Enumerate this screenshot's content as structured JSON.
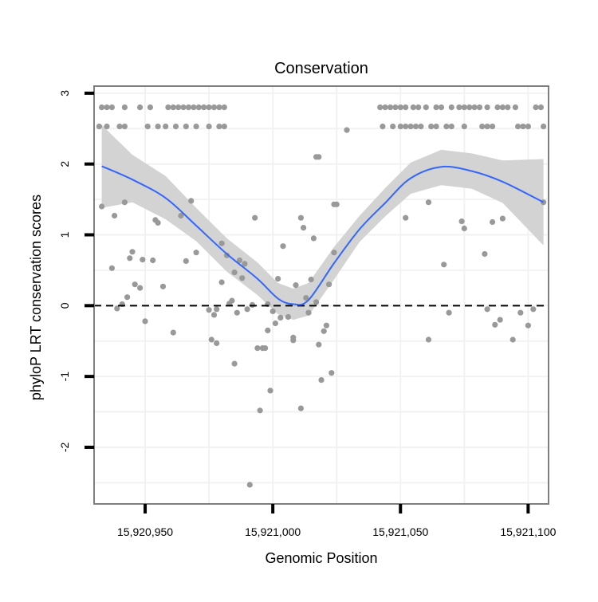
{
  "chart_data": {
    "type": "scatter",
    "title": "Conservation",
    "xlabel": "Genomic Position",
    "ylabel": "phyloP LRT conservation scores",
    "xlim": [
      15920930,
      15921108
    ],
    "ylim": [
      -2.8,
      3.1
    ],
    "x_ticks": [
      15920950,
      15921000,
      15921050,
      15921100
    ],
    "x_tick_labels": [
      "15,920,950",
      "15,921,000",
      "15,921,050",
      "15,921,100"
    ],
    "y_ticks": [
      -2,
      -1,
      0,
      1,
      2,
      3
    ],
    "y_tick_labels": [
      "-2",
      "-1",
      "0",
      "1",
      "2",
      "3"
    ],
    "grid": true,
    "reference_line": {
      "y": 0,
      "style": "dashed",
      "color": "#000000"
    },
    "colors": {
      "points": "#999999",
      "smooth": "#3366ff",
      "ribbon": "#d3d3d3",
      "grid": "#f2f2f2",
      "border": "#7f7f7f"
    },
    "series": [
      {
        "kind": "points",
        "points": [
          [
            15920933,
            2.8
          ],
          [
            15920935,
            2.8
          ],
          [
            15920937,
            2.8
          ],
          [
            15920942,
            2.8
          ],
          [
            15920948,
            2.8
          ],
          [
            15920952,
            2.8
          ],
          [
            15920959,
            2.8
          ],
          [
            15920961,
            2.8
          ],
          [
            15920963,
            2.8
          ],
          [
            15920965,
            2.8
          ],
          [
            15920967,
            2.8
          ],
          [
            15920969,
            2.8
          ],
          [
            15920971,
            2.8
          ],
          [
            15920973,
            2.8
          ],
          [
            15920975,
            2.8
          ],
          [
            15920977,
            2.8
          ],
          [
            15920979,
            2.8
          ],
          [
            15920981,
            2.8
          ],
          [
            15921042,
            2.8
          ],
          [
            15921044,
            2.8
          ],
          [
            15921046,
            2.8
          ],
          [
            15921048,
            2.8
          ],
          [
            15921050,
            2.8
          ],
          [
            15921052,
            2.8
          ],
          [
            15921055,
            2.8
          ],
          [
            15921057,
            2.8
          ],
          [
            15921060,
            2.8
          ],
          [
            15921064,
            2.8
          ],
          [
            15921066,
            2.8
          ],
          [
            15921070,
            2.8
          ],
          [
            15921073,
            2.8
          ],
          [
            15921075,
            2.8
          ],
          [
            15921077,
            2.8
          ],
          [
            15921079,
            2.8
          ],
          [
            15921081,
            2.8
          ],
          [
            15921084,
            2.8
          ],
          [
            15921088,
            2.8
          ],
          [
            15921090,
            2.8
          ],
          [
            15921092,
            2.8
          ],
          [
            15921095,
            2.8
          ],
          [
            15921103,
            2.8
          ],
          [
            15921105,
            2.8
          ],
          [
            15920932,
            2.53
          ],
          [
            15920935,
            2.53
          ],
          [
            15920940,
            2.53
          ],
          [
            15920942,
            2.53
          ],
          [
            15920951,
            2.53
          ],
          [
            15920955,
            2.53
          ],
          [
            15920958,
            2.53
          ],
          [
            15920962,
            2.53
          ],
          [
            15920966,
            2.53
          ],
          [
            15920970,
            2.53
          ],
          [
            15920975,
            2.53
          ],
          [
            15920979,
            2.53
          ],
          [
            15920981,
            2.53
          ],
          [
            15921043,
            2.53
          ],
          [
            15921047,
            2.53
          ],
          [
            15921050,
            2.53
          ],
          [
            15921052,
            2.53
          ],
          [
            15921054,
            2.53
          ],
          [
            15921056,
            2.53
          ],
          [
            15921058,
            2.53
          ],
          [
            15921062,
            2.53
          ],
          [
            15921064,
            2.53
          ],
          [
            15921068,
            2.53
          ],
          [
            15921070,
            2.53
          ],
          [
            15921075,
            2.53
          ],
          [
            15921082,
            2.53
          ],
          [
            15921084,
            2.53
          ],
          [
            15921086,
            2.53
          ],
          [
            15921096,
            2.53
          ],
          [
            15921098,
            2.53
          ],
          [
            15921100,
            2.53
          ],
          [
            15921106,
            2.53
          ],
          [
            15921029,
            2.48
          ],
          [
            15921017,
            2.1
          ],
          [
            15921018,
            2.1
          ],
          [
            15921024,
            1.43
          ],
          [
            15921025,
            1.43
          ],
          [
            15921052,
            1.24
          ],
          [
            15921061,
            1.46
          ],
          [
            15921074,
            1.19
          ],
          [
            15921075,
            1.09
          ],
          [
            15921067,
            0.58
          ],
          [
            15921083,
            0.73
          ],
          [
            15921086,
            1.18
          ],
          [
            15921090,
            1.23
          ],
          [
            15921084,
            -0.05
          ],
          [
            15921069,
            -0.1
          ],
          [
            15921061,
            -0.48
          ],
          [
            15921087,
            -0.27
          ],
          [
            15921089,
            -0.2
          ],
          [
            15921094,
            -0.48
          ],
          [
            15921097,
            -0.1
          ],
          [
            15921100,
            -0.28
          ],
          [
            15921102,
            -0.05
          ],
          [
            15921106,
            1.46
          ],
          [
            15920933,
            1.4
          ],
          [
            15920937,
            0.53
          ],
          [
            15920938,
            1.27
          ],
          [
            15920939,
            -0.04
          ],
          [
            15920941,
            0.02
          ],
          [
            15920942,
            1.46
          ],
          [
            15920943,
            0.12
          ],
          [
            15920944,
            0.67
          ],
          [
            15920945,
            0.76
          ],
          [
            15920946,
            0.3
          ],
          [
            15920948,
            0.25
          ],
          [
            15920949,
            0.65
          ],
          [
            15920950,
            -0.22
          ],
          [
            15920953,
            0.64
          ],
          [
            15920954,
            1.21
          ],
          [
            15920955,
            1.17
          ],
          [
            15920957,
            0.27
          ],
          [
            15920961,
            -0.38
          ],
          [
            15920964,
            1.27
          ],
          [
            15920966,
            0.63
          ],
          [
            15920968,
            1.48
          ],
          [
            15920970,
            0.75
          ],
          [
            15920975,
            -0.06
          ],
          [
            15920976,
            -0.48
          ],
          [
            15920977,
            -0.13
          ],
          [
            15920978,
            -0.05
          ],
          [
            15920978,
            -0.53
          ],
          [
            15920980,
            0.88
          ],
          [
            15920980,
            0.33
          ],
          [
            15920982,
            0.71
          ],
          [
            15920983,
            0.03
          ],
          [
            15920984,
            0.07
          ],
          [
            15920985,
            0.47
          ],
          [
            15920985,
            -0.82
          ],
          [
            15920986,
            -0.1
          ],
          [
            15920987,
            0.64
          ],
          [
            15920988,
            0.39
          ],
          [
            15920989,
            0.59
          ],
          [
            15920990,
            -0.05
          ],
          [
            15920991,
            -2.53
          ],
          [
            15920992,
            0.01
          ],
          [
            15920993,
            1.24
          ],
          [
            15920994,
            -0.6
          ],
          [
            15920995,
            -1.48
          ],
          [
            15920996,
            -0.6
          ],
          [
            15920997,
            -0.6
          ],
          [
            15920998,
            0.02
          ],
          [
            15920998,
            -0.35
          ],
          [
            15920999,
            -1.2
          ],
          [
            15921000,
            -0.08
          ],
          [
            15921001,
            -0.25
          ],
          [
            15921002,
            0.38
          ],
          [
            15921003,
            -0.17
          ],
          [
            15921004,
            0.84
          ],
          [
            15921006,
            -0.16
          ],
          [
            15921008,
            -0.45
          ],
          [
            15921008,
            -0.49
          ],
          [
            15921009,
            0.29
          ],
          [
            15921011,
            1.24
          ],
          [
            15921011,
            -1.45
          ],
          [
            15921012,
            1.1
          ],
          [
            15921013,
            0.11
          ],
          [
            15921014,
            -0.1
          ],
          [
            15921015,
            0.37
          ],
          [
            15921016,
            0.95
          ],
          [
            15921017,
            0.05
          ],
          [
            15921018,
            -0.55
          ],
          [
            15921019,
            -1.05
          ],
          [
            15921020,
            -0.36
          ],
          [
            15921021,
            -0.28
          ],
          [
            15921022,
            0.3
          ],
          [
            15921023,
            -0.95
          ],
          [
            15921024,
            0.75
          ]
        ]
      },
      {
        "kind": "smooth",
        "x": [
          15920933,
          15920945,
          15920958,
          15920970,
          15920982,
          15920994,
          15921002,
          15921008,
          15921014,
          15921024,
          15921034,
          15921044,
          15921054,
          15921066,
          15921078,
          15921090,
          15921106
        ],
        "y": [
          1.97,
          1.78,
          1.52,
          1.13,
          0.73,
          0.38,
          0.1,
          0.02,
          0.08,
          0.6,
          1.08,
          1.45,
          1.8,
          1.96,
          1.9,
          1.75,
          1.46
        ],
        "lower": [
          1.38,
          1.46,
          1.22,
          0.91,
          0.48,
          0.15,
          -0.12,
          -0.2,
          -0.14,
          0.37,
          0.9,
          1.26,
          1.58,
          1.7,
          1.65,
          1.45,
          0.85
        ],
        "upper": [
          2.55,
          2.13,
          1.83,
          1.38,
          0.95,
          0.61,
          0.32,
          0.24,
          0.32,
          0.83,
          1.27,
          1.66,
          2.02,
          2.2,
          2.15,
          2.05,
          2.07
        ]
      }
    ]
  }
}
